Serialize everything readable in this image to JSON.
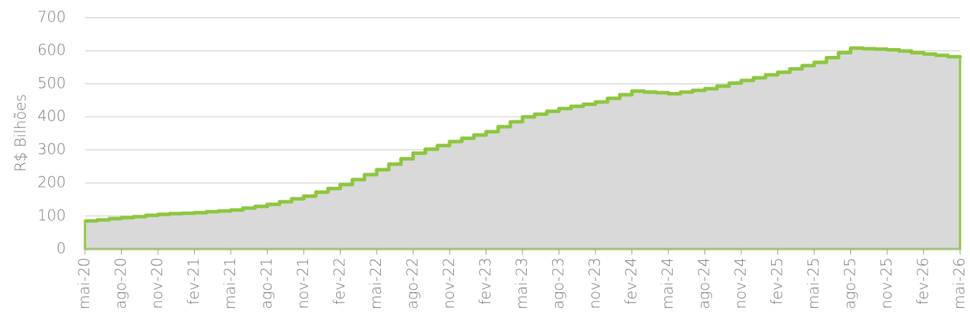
{
  "chart_data": {
    "type": "step-area",
    "y_label": "R$ Bilhões",
    "categories": [
      "mai-20",
      null,
      null,
      "ago-20",
      null,
      null,
      "nov-20",
      null,
      null,
      "fev-21",
      null,
      null,
      "mai-21",
      null,
      null,
      "ago-21",
      null,
      null,
      "nov-21",
      null,
      null,
      "fev-22",
      null,
      null,
      "mai-22",
      null,
      null,
      "ago-22",
      null,
      null,
      "nov-22",
      null,
      null,
      "fev-23",
      null,
      null,
      "mai-23",
      null,
      null,
      "ago-23",
      null,
      null,
      "nov-23",
      null,
      null,
      "fev-24",
      null,
      null,
      "mai-24",
      null,
      null,
      "ago-24",
      null,
      null,
      "nov-24",
      null,
      null,
      "fev-25",
      null,
      null,
      "mai-25",
      null,
      null,
      "ago-25",
      null,
      null,
      "nov-25",
      null,
      null,
      "fev-26",
      null,
      null,
      "mai-26"
    ],
    "values": [
      85,
      88,
      92,
      95,
      98,
      102,
      105,
      107,
      108,
      110,
      113,
      115,
      118,
      124,
      129,
      135,
      143,
      152,
      160,
      172,
      183,
      195,
      210,
      225,
      240,
      257,
      273,
      290,
      302,
      313,
      325,
      335,
      345,
      355,
      370,
      385,
      400,
      408,
      417,
      425,
      432,
      438,
      445,
      456,
      467,
      478,
      475,
      473,
      470,
      475,
      480,
      485,
      493,
      502,
      510,
      518,
      527,
      535,
      545,
      555,
      565,
      579,
      594,
      608,
      606,
      605,
      603,
      599,
      594,
      590,
      586,
      582,
      578
    ],
    "color": "#8dc63f",
    "fill": "#d9d9d9",
    "ylim": [
      0,
      700
    ],
    "yticks": [
      0,
      100,
      200,
      300,
      400,
      500,
      600,
      700
    ],
    "grid": true
  }
}
